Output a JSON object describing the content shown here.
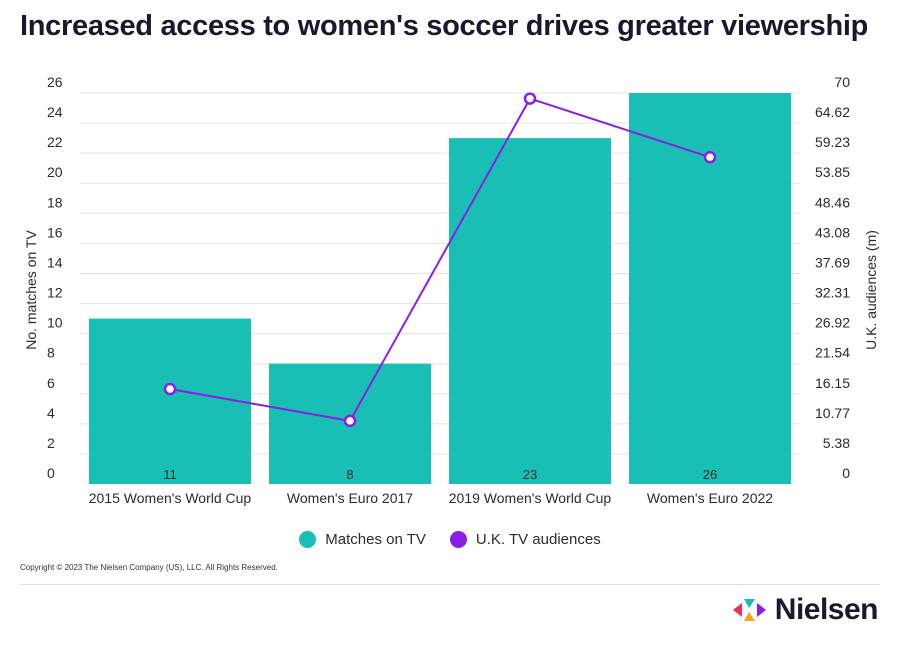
{
  "header": {
    "title": "Increased access to women's soccer drives greater viewership"
  },
  "chart_data": {
    "type": "bar",
    "title": "Increased access to women's soccer drives greater viewership",
    "categories": [
      "2015 Women's World Cup",
      "Women's Euro 2017",
      "2019 Women's World Cup",
      "Women's Euro 2022"
    ],
    "series": [
      {
        "name": "Matches on TV",
        "type": "bar",
        "axis": "left",
        "values": [
          11,
          8,
          23,
          26
        ],
        "color": "#19bfb4"
      },
      {
        "name": "U.K. TV audiences",
        "type": "line",
        "axis": "right",
        "values": [
          17.0,
          11.3,
          69.0,
          58.5
        ],
        "color": "#8a1fe3"
      }
    ],
    "data_labels": [
      "11",
      "8",
      "23",
      "26"
    ],
    "ylabel": "No. matches on TV",
    "y2label": "U.K. audiences (m)",
    "ylim": [
      0,
      26
    ],
    "y2lim": [
      0,
      70
    ],
    "yticks": [
      "0",
      "2",
      "4",
      "6",
      "8",
      "10",
      "12",
      "14",
      "16",
      "18",
      "20",
      "22",
      "24",
      "26"
    ],
    "y2ticks": [
      "0",
      "5.38",
      "10.77",
      "16.15",
      "21.54",
      "26.92",
      "32.31",
      "37.69",
      "43.08",
      "48.46",
      "53.85",
      "59.23",
      "64.62",
      "70"
    ],
    "grid": true,
    "legend": "bottom-center"
  },
  "legend": {
    "items": [
      {
        "label": "Matches on TV",
        "color": "#19bfb4"
      },
      {
        "label": "U.K. TV audiences",
        "color": "#8a1fe3"
      }
    ]
  },
  "footer": {
    "copyright": "Copyright © 2023 The Nielsen Company (US), LLC. All Rights Reserved.",
    "logo_text": "Nielsen"
  }
}
